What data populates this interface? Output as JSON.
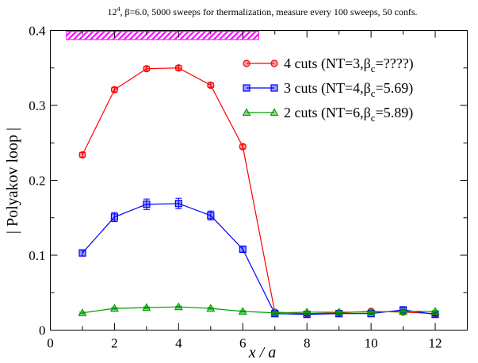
{
  "chart_data": {
    "type": "line",
    "title_base": "12",
    "title_sup": "4",
    "title_rest": ", β=6.0, 5000 sweeps for thermalization, measure every 100 sweeps, 50 confs.",
    "xlabel": "x / a",
    "ylabel": "| Polyakov loop |",
    "xlim": [
      0,
      13
    ],
    "ylim": [
      0,
      0.4
    ],
    "xticks": [
      0,
      2,
      4,
      6,
      8,
      10,
      12
    ],
    "yticks": [
      0,
      0.1,
      0.2,
      0.3,
      0.4
    ],
    "xtick_labels": [
      "0",
      "2",
      "4",
      "6",
      "8",
      "10",
      "12"
    ],
    "ytick_labels": [
      "0",
      "0.1",
      "0.2",
      "0.3",
      "0.4"
    ],
    "legend_position": "top-right",
    "band": {
      "x": [
        0.5,
        6.5
      ],
      "y": [
        0.388,
        0.399
      ],
      "color": "#ff00ff"
    },
    "series": [
      {
        "legend_prefix": "4 cuts (NT=3,β",
        "legend_sub": "c",
        "legend_suffix": "=????)",
        "color": "#ff0000",
        "marker": "circle",
        "x": [
          1,
          2,
          3,
          4,
          5,
          6,
          7,
          8,
          9,
          10,
          11,
          12
        ],
        "y": [
          0.234,
          0.321,
          0.349,
          0.35,
          0.327,
          0.245,
          0.024,
          0.022,
          0.023,
          0.025,
          0.024,
          0.022
        ],
        "err": [
          0.003,
          0.003,
          0.003,
          0.003,
          0.003,
          0.003,
          0.002,
          0.002,
          0.002,
          0.002,
          0.002,
          0.002
        ]
      },
      {
        "legend_prefix": "3 cuts (NT=4,β",
        "legend_sub": "c",
        "legend_suffix": "=5.69)",
        "color": "#0000ff",
        "marker": "square",
        "x": [
          1,
          2,
          3,
          4,
          5,
          6,
          7,
          8,
          9,
          10,
          11,
          12
        ],
        "y": [
          0.103,
          0.151,
          0.168,
          0.169,
          0.153,
          0.108,
          0.022,
          0.021,
          0.022,
          0.022,
          0.027,
          0.021
        ],
        "err": [
          0.004,
          0.006,
          0.007,
          0.007,
          0.006,
          0.004,
          0.002,
          0.002,
          0.002,
          0.002,
          0.003,
          0.002
        ]
      },
      {
        "legend_prefix": "2 cuts (NT=6,β",
        "legend_sub": "c",
        "legend_suffix": "=5.89)",
        "color": "#00a000",
        "marker": "triangle",
        "x": [
          1,
          2,
          3,
          4,
          5,
          6,
          7,
          8,
          9,
          10,
          11,
          12
        ],
        "y": [
          0.023,
          0.029,
          0.03,
          0.031,
          0.029,
          0.025,
          0.023,
          0.024,
          0.024,
          0.024,
          0.025,
          0.025
        ],
        "err": [
          0.001,
          0.001,
          0.001,
          0.001,
          0.001,
          0.001,
          0.001,
          0.001,
          0.001,
          0.001,
          0.001,
          0.001
        ]
      }
    ]
  }
}
